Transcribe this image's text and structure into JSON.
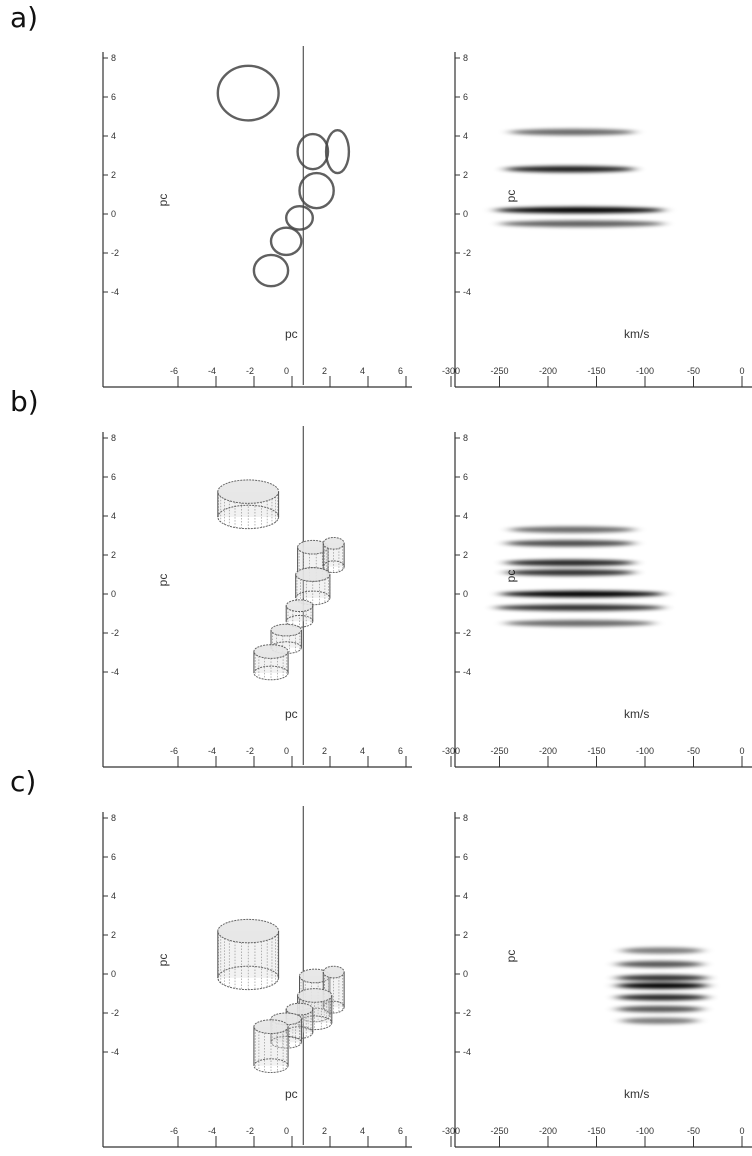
{
  "figure": {
    "panels": [
      {
        "letter": "a)",
        "spatial": {
          "ylabel": "pc",
          "xlabel": "pc",
          "yticks": [
            "8",
            "6",
            "4",
            "2",
            "0",
            "-2",
            "-4"
          ],
          "xticks": [
            "-6",
            "-4",
            "-2",
            "0",
            "2",
            "4",
            "6"
          ],
          "style": "rings",
          "clouds": [
            {
              "x": -2.2,
              "y": 6.2,
              "rx": 1.6,
              "ry": 1.4
            },
            {
              "x": 1.2,
              "y": 3.2,
              "rx": 0.8,
              "ry": 0.9
            },
            {
              "x": 2.5,
              "y": 3.2,
              "rx": 0.6,
              "ry": 1.1
            },
            {
              "x": 1.4,
              "y": 1.2,
              "rx": 0.9,
              "ry": 0.9
            },
            {
              "x": 0.5,
              "y": -0.2,
              "rx": 0.7,
              "ry": 0.6
            },
            {
              "x": -0.2,
              "y": -1.4,
              "rx": 0.8,
              "ry": 0.7
            },
            {
              "x": -1.0,
              "y": -2.9,
              "rx": 0.9,
              "ry": 0.8
            }
          ],
          "line_x": 0.7
        },
        "spectrum": {
          "ylabel": "pc",
          "xlabel": "km/s",
          "yticks": [
            "8",
            "6",
            "4",
            "2",
            "0",
            "-2",
            "-4"
          ],
          "xticks": [
            "-300",
            "-250",
            "-200",
            "-150",
            "-100",
            "-50",
            "0"
          ],
          "bands": [
            {
              "y": 4.2,
              "v0": -240,
              "v1": -110,
              "strength": 0.45
            },
            {
              "y": 2.3,
              "v0": -245,
              "v1": -110,
              "strength": 0.85
            },
            {
              "y": 0.2,
              "v0": -255,
              "v1": -80,
              "strength": 1.0
            },
            {
              "y": -0.5,
              "v0": -250,
              "v1": -80,
              "strength": 0.5
            }
          ]
        }
      },
      {
        "letter": "b)",
        "spatial": {
          "ylabel": "pc",
          "xlabel": "pc",
          "yticks": [
            "8",
            "6",
            "4",
            "2",
            "0",
            "-2",
            "-4"
          ],
          "xticks": [
            "-6",
            "-4",
            "-2",
            "0",
            "2",
            "4",
            "6"
          ],
          "style": "cylinders",
          "clouds": [
            {
              "x": -2.2,
              "y": 4.6,
              "rx": 1.6,
              "ry": 0.6,
              "h": 1.3
            },
            {
              "x": 1.2,
              "y": 1.7,
              "rx": 0.8,
              "ry": 0.35,
              "h": 1.4
            },
            {
              "x": 2.3,
              "y": 2.0,
              "rx": 0.55,
              "ry": 0.3,
              "h": 1.2
            },
            {
              "x": 1.2,
              "y": 0.4,
              "rx": 0.9,
              "ry": 0.35,
              "h": 1.2
            },
            {
              "x": 0.5,
              "y": -1.0,
              "rx": 0.7,
              "ry": 0.3,
              "h": 0.8
            },
            {
              "x": -0.2,
              "y": -2.3,
              "rx": 0.8,
              "ry": 0.3,
              "h": 0.9
            },
            {
              "x": -1.0,
              "y": -3.5,
              "rx": 0.9,
              "ry": 0.35,
              "h": 1.1
            }
          ],
          "line_x": 0.7
        },
        "spectrum": {
          "ylabel": "pc",
          "xlabel": "km/s",
          "yticks": [
            "8",
            "6",
            "4",
            "2",
            "0",
            "-2",
            "-4"
          ],
          "xticks": [
            "-300",
            "-250",
            "-200",
            "-150",
            "-100",
            "-50",
            "0"
          ],
          "bands": [
            {
              "y": 3.3,
              "v0": -240,
              "v1": -110,
              "strength": 0.45
            },
            {
              "y": 2.6,
              "v0": -245,
              "v1": -110,
              "strength": 0.6
            },
            {
              "y": 1.6,
              "v0": -245,
              "v1": -110,
              "strength": 0.8
            },
            {
              "y": 1.1,
              "v0": -245,
              "v1": -110,
              "strength": 0.75
            },
            {
              "y": 0.0,
              "v0": -250,
              "v1": -80,
              "strength": 1.0
            },
            {
              "y": -0.7,
              "v0": -255,
              "v1": -80,
              "strength": 0.75
            },
            {
              "y": -1.5,
              "v0": -245,
              "v1": -90,
              "strength": 0.45
            }
          ]
        }
      },
      {
        "letter": "c)",
        "spatial": {
          "ylabel": "pc",
          "xlabel": "pc",
          "yticks": [
            "8",
            "6",
            "4",
            "2",
            "0",
            "-2",
            "-4"
          ],
          "xticks": [
            "-6",
            "-4",
            "-2",
            "0",
            "2",
            "4",
            "6"
          ],
          "style": "cylinders",
          "clouds": [
            {
              "x": -2.2,
              "y": 1.0,
              "rx": 1.6,
              "ry": 0.6,
              "h": 2.4
            },
            {
              "x": 1.3,
              "y": -1.1,
              "rx": 0.8,
              "ry": 0.35,
              "h": 2.0
            },
            {
              "x": 2.3,
              "y": -0.8,
              "rx": 0.55,
              "ry": 0.3,
              "h": 1.8
            },
            {
              "x": 1.3,
              "y": -1.8,
              "rx": 0.9,
              "ry": 0.35,
              "h": 1.4
            },
            {
              "x": 0.5,
              "y": -2.4,
              "rx": 0.7,
              "ry": 0.3,
              "h": 1.2
            },
            {
              "x": -0.2,
              "y": -2.9,
              "rx": 0.8,
              "ry": 0.3,
              "h": 1.2
            },
            {
              "x": -1.0,
              "y": -3.7,
              "rx": 0.9,
              "ry": 0.35,
              "h": 2.0
            }
          ],
          "line_x": 0.7
        },
        "spectrum": {
          "ylabel": "pc",
          "xlabel": "km/s",
          "yticks": [
            "8",
            "6",
            "4",
            "2",
            "0",
            "-2",
            "-4"
          ],
          "xticks": [
            "-300",
            "-250",
            "-200",
            "-150",
            "-100",
            "-50",
            "0"
          ],
          "bands": [
            {
              "y": 1.2,
              "v0": -125,
              "v1": -40,
              "strength": 0.35
            },
            {
              "y": 0.5,
              "v0": -130,
              "v1": -40,
              "strength": 0.55
            },
            {
              "y": -0.2,
              "v0": -130,
              "v1": -35,
              "strength": 0.75
            },
            {
              "y": -0.6,
              "v0": -130,
              "v1": -35,
              "strength": 1.0
            },
            {
              "y": -1.2,
              "v0": -130,
              "v1": -35,
              "strength": 0.8
            },
            {
              "y": -1.8,
              "v0": -130,
              "v1": -40,
              "strength": 0.55
            },
            {
              "y": -2.4,
              "v0": -125,
              "v1": -45,
              "strength": 0.35
            }
          ]
        }
      }
    ]
  }
}
